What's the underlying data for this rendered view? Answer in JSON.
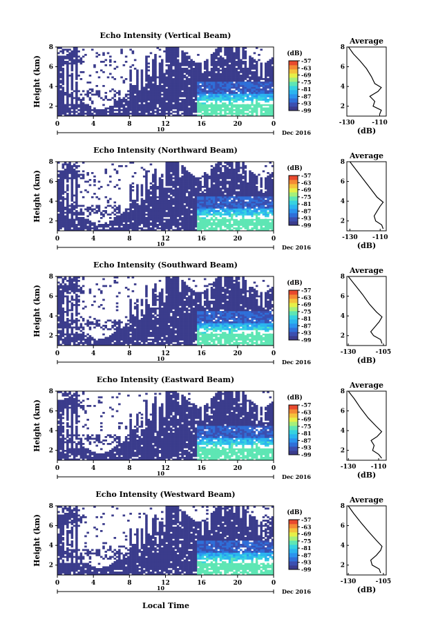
{
  "x_label": "Local Time",
  "date_label": "Dec 2016",
  "day_label": "10",
  "units_label": "(dB)",
  "colormap": [
    "#3b3c8c",
    "#3b4fb0",
    "#2f6fd8",
    "#2b93ee",
    "#2bb5ef",
    "#36d2e0",
    "#5ee6b4",
    "#a6f07a",
    "#e6f048",
    "#f5c23c",
    "#f48a35",
    "#e84a2e"
  ],
  "chart_data": [
    {
      "type": "heatmap",
      "title": "Echo Intensity (Vertical Beam)",
      "ylabel": "Height (km)",
      "x_ticks": [
        "0",
        "4",
        "8",
        "12",
        "16",
        "20",
        "0"
      ],
      "y_ticks": [
        "2",
        "4",
        "6",
        "8"
      ],
      "xlim": [
        0,
        24
      ],
      "ylim": [
        1,
        8
      ],
      "colorbar_ticks": [
        "-57",
        "-63",
        "-69",
        "-75",
        "-81",
        "-87",
        "-93",
        "-99"
      ],
      "profile": {
        "title": "Average",
        "xlabel": "(dB)",
        "x_ticks": [
          "-130",
          "-110"
        ],
        "y_ticks": [
          "2",
          "4",
          "6",
          "8"
        ],
        "xlim": [
          -130,
          -106
        ],
        "ylim": [
          1,
          8
        ],
        "points": [
          [
            -110,
            1.2
          ],
          [
            -109,
            1.6
          ],
          [
            -114,
            2.0
          ],
          [
            -113,
            2.5
          ],
          [
            -116,
            3.0
          ],
          [
            -111,
            3.5
          ],
          [
            -109,
            3.9
          ],
          [
            -113,
            4.3
          ],
          [
            -115,
            5.0
          ],
          [
            -118,
            5.8
          ],
          [
            -122,
            6.6
          ],
          [
            -126,
            7.3
          ],
          [
            -129,
            8.0
          ]
        ]
      }
    },
    {
      "type": "heatmap",
      "title": "Echo Intensity (Northward Beam)",
      "ylabel": "Height (km)",
      "x_ticks": [
        "0",
        "4",
        "8",
        "12",
        "16",
        "20",
        "0"
      ],
      "y_ticks": [
        "2",
        "4",
        "6",
        "8"
      ],
      "xlim": [
        0,
        24
      ],
      "ylim": [
        1,
        8
      ],
      "colorbar_ticks": [
        "-57",
        "-63",
        "-69",
        "-75",
        "-81",
        "-87",
        "-93",
        "-99"
      ],
      "profile": {
        "title": "Average",
        "xlabel": "(dB)",
        "x_ticks": [
          "-130",
          "-110"
        ],
        "y_ticks": [
          "2",
          "4",
          "6",
          "8"
        ],
        "xlim": [
          -132,
          -106
        ],
        "ylim": [
          1,
          8
        ],
        "points": [
          [
            -108,
            1.2
          ],
          [
            -109,
            1.6
          ],
          [
            -113,
            2.0
          ],
          [
            -114,
            2.5
          ],
          [
            -112,
            3.0
          ],
          [
            -110,
            3.5
          ],
          [
            -108,
            3.9
          ],
          [
            -112,
            4.4
          ],
          [
            -116,
            5.2
          ],
          [
            -121,
            6.2
          ],
          [
            -125,
            7.0
          ],
          [
            -130,
            8.0
          ]
        ]
      }
    },
    {
      "type": "heatmap",
      "title": "Echo Intensity (Southward Beam)",
      "ylabel": "Height (km)",
      "x_ticks": [
        "0",
        "4",
        "8",
        "12",
        "16",
        "20",
        "0"
      ],
      "y_ticks": [
        "2",
        "4",
        "6",
        "8"
      ],
      "xlim": [
        0,
        24
      ],
      "ylim": [
        1,
        8
      ],
      "colorbar_ticks": [
        "-57",
        "-63",
        "-69",
        "-75",
        "-81",
        "-87",
        "-93",
        "-99"
      ],
      "profile": {
        "title": "Average",
        "xlabel": "(dB)",
        "x_ticks": [
          "-130",
          "-105"
        ],
        "y_ticks": [
          "2",
          "4",
          "6",
          "8"
        ],
        "xlim": [
          -131,
          -103
        ],
        "ylim": [
          1,
          8
        ],
        "points": [
          [
            -106,
            1.2
          ],
          [
            -107,
            1.6
          ],
          [
            -112,
            2.0
          ],
          [
            -114,
            2.4
          ],
          [
            -111,
            2.9
          ],
          [
            -108,
            3.4
          ],
          [
            -106,
            3.9
          ],
          [
            -110,
            4.4
          ],
          [
            -115,
            5.2
          ],
          [
            -120,
            6.2
          ],
          [
            -125,
            7.1
          ],
          [
            -130,
            8.0
          ]
        ]
      }
    },
    {
      "type": "heatmap",
      "title": "Echo Intensity (Eastward Beam)",
      "ylabel": "Height (km)",
      "x_ticks": [
        "0",
        "4",
        "8",
        "12",
        "16",
        "20",
        "0"
      ],
      "y_ticks": [
        "2",
        "4",
        "6",
        "8"
      ],
      "xlim": [
        0,
        24
      ],
      "ylim": [
        1,
        8
      ],
      "colorbar_ticks": [
        "-57",
        "-63",
        "-69",
        "-75",
        "-81",
        "-87",
        "-93",
        "-99"
      ],
      "profile": {
        "title": "Average",
        "xlabel": "(dB)",
        "x_ticks": [
          "-130",
          "-110"
        ],
        "y_ticks": [
          "2",
          "4",
          "6",
          "8"
        ],
        "xlim": [
          -131,
          -105
        ],
        "ylim": [
          1,
          8
        ],
        "points": [
          [
            -108,
            1.2
          ],
          [
            -110,
            1.6
          ],
          [
            -114,
            2.0
          ],
          [
            -113,
            2.5
          ],
          [
            -115,
            3.0
          ],
          [
            -111,
            3.4
          ],
          [
            -108,
            3.9
          ],
          [
            -112,
            4.5
          ],
          [
            -117,
            5.3
          ],
          [
            -122,
            6.3
          ],
          [
            -126,
            7.2
          ],
          [
            -130,
            8.0
          ]
        ]
      }
    },
    {
      "type": "heatmap",
      "title": "Echo Intensity (Westward Beam)",
      "ylabel": "Height (km)",
      "x_ticks": [
        "0",
        "4",
        "8",
        "12",
        "16",
        "20",
        "0"
      ],
      "y_ticks": [
        "2",
        "4",
        "6",
        "8"
      ],
      "xlim": [
        0,
        24
      ],
      "ylim": [
        1,
        8
      ],
      "colorbar_ticks": [
        "-57",
        "-63",
        "-69",
        "-75",
        "-81",
        "-87",
        "-93",
        "-99"
      ],
      "profile": {
        "title": "Average",
        "xlabel": "(dB)",
        "x_ticks": [
          "-130",
          "-105"
        ],
        "y_ticks": [
          "2",
          "4",
          "6",
          "8"
        ],
        "xlim": [
          -131,
          -103
        ],
        "ylim": [
          1,
          8
        ],
        "points": [
          [
            -107,
            1.2
          ],
          [
            -108,
            1.6
          ],
          [
            -113,
            2.0
          ],
          [
            -114,
            2.5
          ],
          [
            -110,
            3.0
          ],
          [
            -107,
            3.5
          ],
          [
            -106,
            3.9
          ],
          [
            -110,
            4.5
          ],
          [
            -115,
            5.3
          ],
          [
            -121,
            6.3
          ],
          [
            -126,
            7.2
          ],
          [
            -130,
            8.0
          ]
        ]
      }
    }
  ]
}
